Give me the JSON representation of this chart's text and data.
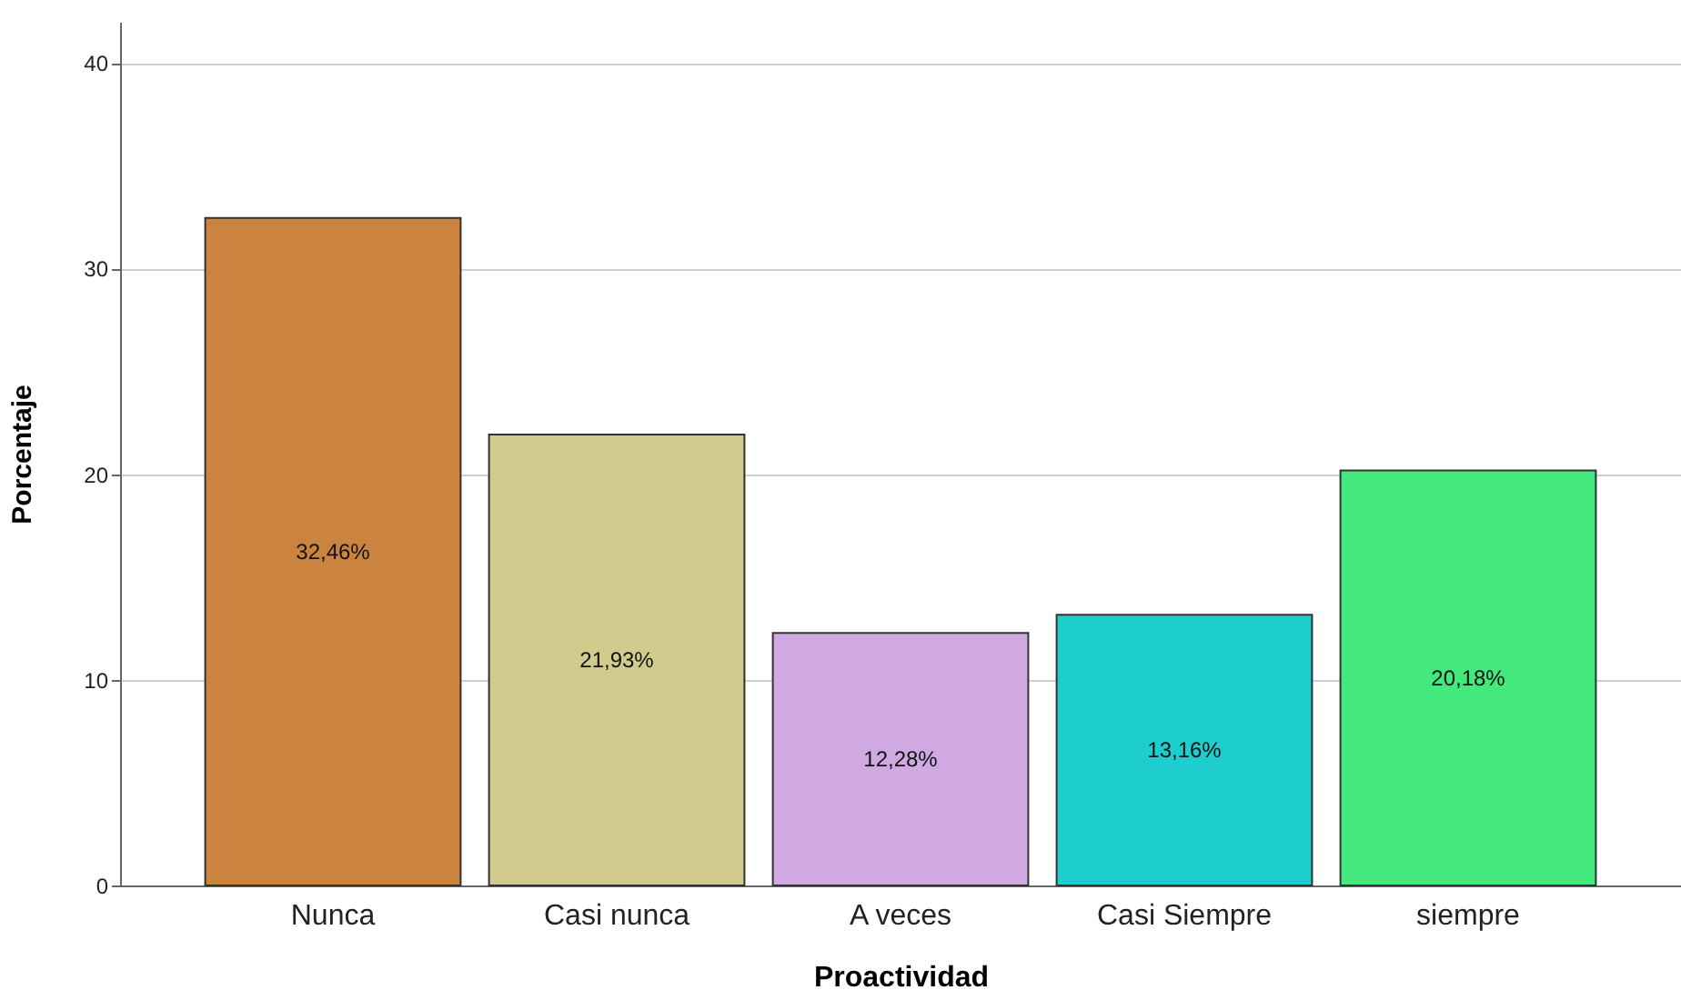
{
  "chart_data": {
    "type": "bar",
    "xlabel": "Proactividad",
    "ylabel": "Porcentaje",
    "categories": [
      "Nunca",
      "Casi nunca",
      "A veces",
      "Casi Siempre",
      "siempre"
    ],
    "values": [
      32.46,
      21.93,
      12.28,
      13.16,
      20.18
    ],
    "value_labels": [
      "32,46%",
      "21,93%",
      "12,28%",
      "13,16%",
      "20,18%"
    ],
    "colors": [
      "#cb843f",
      "#d1cb8e",
      "#d0a9e3",
      "#1ecdcd",
      "#43e97c"
    ],
    "ylim": [
      0,
      42
    ],
    "yticks": [
      0,
      10,
      20,
      30,
      40
    ],
    "grid": "y"
  }
}
